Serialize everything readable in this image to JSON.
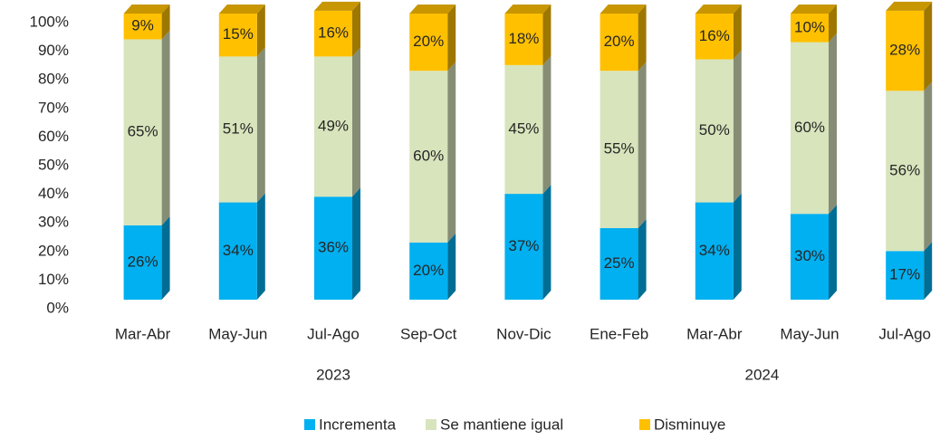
{
  "chart_data": {
    "type": "stacked-bar-3d",
    "categories": [
      "Mar-Abr",
      "May-Jun",
      "Jul-Ago",
      "Sep-Oct",
      "Nov-Dic",
      "Ene-Feb",
      "Mar-Abr",
      "May-Jun",
      "Jul-Ago"
    ],
    "category_groups": [
      {
        "label": "2023",
        "start": 0,
        "end": 4
      },
      {
        "label": "2024",
        "start": 5,
        "end": 8
      }
    ],
    "series": [
      {
        "name": "Incrementa",
        "color": "#00b0f0",
        "values": [
          26,
          34,
          36,
          20,
          37,
          25,
          34,
          30,
          17
        ],
        "value_labels": [
          "26%",
          "34%",
          "36%",
          "20%",
          "37%",
          "25%",
          "34%",
          "30%",
          "17%"
        ]
      },
      {
        "name": "Se mantiene igual",
        "color": "#d8e4bc",
        "values": [
          65,
          51,
          49,
          60,
          45,
          55,
          50,
          60,
          56
        ],
        "value_labels": [
          "65%",
          "51%",
          "49%",
          "60%",
          "45%",
          "55%",
          "50%",
          "60%",
          "56%"
        ]
      },
      {
        "name": "Disminuye",
        "color": "#ffc000",
        "values": [
          9,
          15,
          16,
          20,
          18,
          20,
          16,
          10,
          28
        ],
        "value_labels": [
          "9%",
          "15%",
          "16%",
          "20%",
          "18%",
          "20%",
          "16%",
          "10%",
          "28%"
        ]
      }
    ],
    "ylim": [
      0,
      100
    ],
    "yticks": [
      {
        "value": 0,
        "label": "0%"
      },
      {
        "value": 10,
        "label": "10%"
      },
      {
        "value": 20,
        "label": "20%"
      },
      {
        "value": 30,
        "label": "30%"
      },
      {
        "value": 40,
        "label": "40%"
      },
      {
        "value": 50,
        "label": "50%"
      },
      {
        "value": 60,
        "label": "60%"
      },
      {
        "value": 70,
        "label": "70%"
      },
      {
        "value": 80,
        "label": "80%"
      },
      {
        "value": 90,
        "label": "90%"
      },
      {
        "value": 100,
        "label": "100%"
      }
    ],
    "legend": "bottom"
  }
}
